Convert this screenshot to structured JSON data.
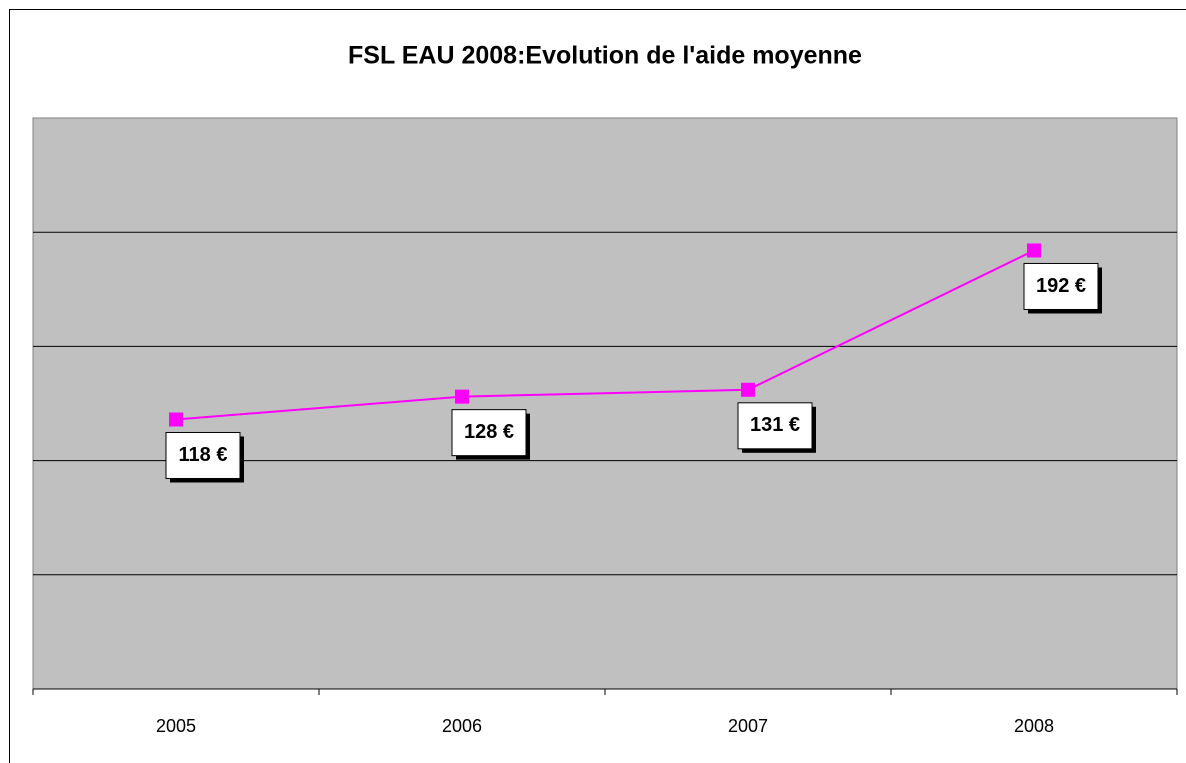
{
  "chart_data": {
    "type": "line",
    "title": "FSL EAU 2008:Evolution de l'aide moyenne",
    "categories": [
      "2005",
      "2006",
      "2007",
      "2008"
    ],
    "series": [
      {
        "color": "#ff00ff",
        "values": [
          118,
          128,
          131,
          192
        ],
        "value_labels": [
          "118 €",
          "128 €",
          "131 €",
          "192 €"
        ]
      }
    ],
    "ylim": [
      0,
      250
    ],
    "yticks": [
      0,
      50,
      100,
      150,
      200,
      250
    ],
    "grid": true
  }
}
